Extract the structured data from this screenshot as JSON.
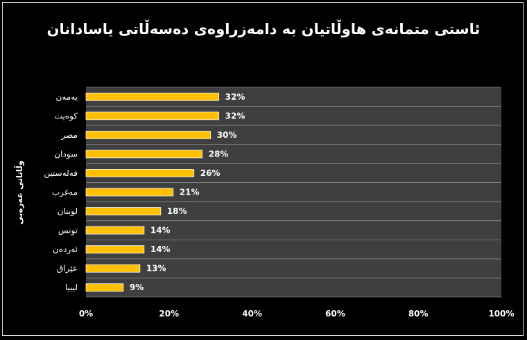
{
  "chart_data": {
    "type": "bar",
    "orientation": "horizontal",
    "title": "ئاستی متمانەی هاوڵاتیان بە دامەزراوەی دەسەڵاتی یاسادانان",
    "ylabel": "وڵاتانی عەرەبی",
    "xlabel": "",
    "categories": [
      "یەمەن",
      "کوەیت",
      "مصر",
      "سودان",
      "فەلەستین",
      "مەغرب",
      "لوبنان",
      "تونس",
      "ئەردەن",
      "عێراق",
      "لیبیا"
    ],
    "values": [
      32,
      32,
      30,
      28,
      26,
      21,
      18,
      14,
      14,
      13,
      9
    ],
    "value_labels": [
      "32%",
      "32%",
      "30%",
      "28%",
      "26%",
      "21%",
      "18%",
      "14%",
      "14%",
      "13%",
      "9%"
    ],
    "xlim": [
      0,
      100
    ],
    "x_ticks": [
      "0%",
      "20%",
      "40%",
      "60%",
      "80%",
      "100%"
    ],
    "x_tick_values": [
      0,
      20,
      40,
      60,
      80,
      100
    ],
    "grid": true,
    "legend": "none",
    "colors": {
      "bar": "#ffc000",
      "bar_outline": "#f5f5f5",
      "plot_background": "#3f3f3f",
      "background": "#000000",
      "text": "#ffffff",
      "gridline": "#d9d9d9"
    }
  }
}
